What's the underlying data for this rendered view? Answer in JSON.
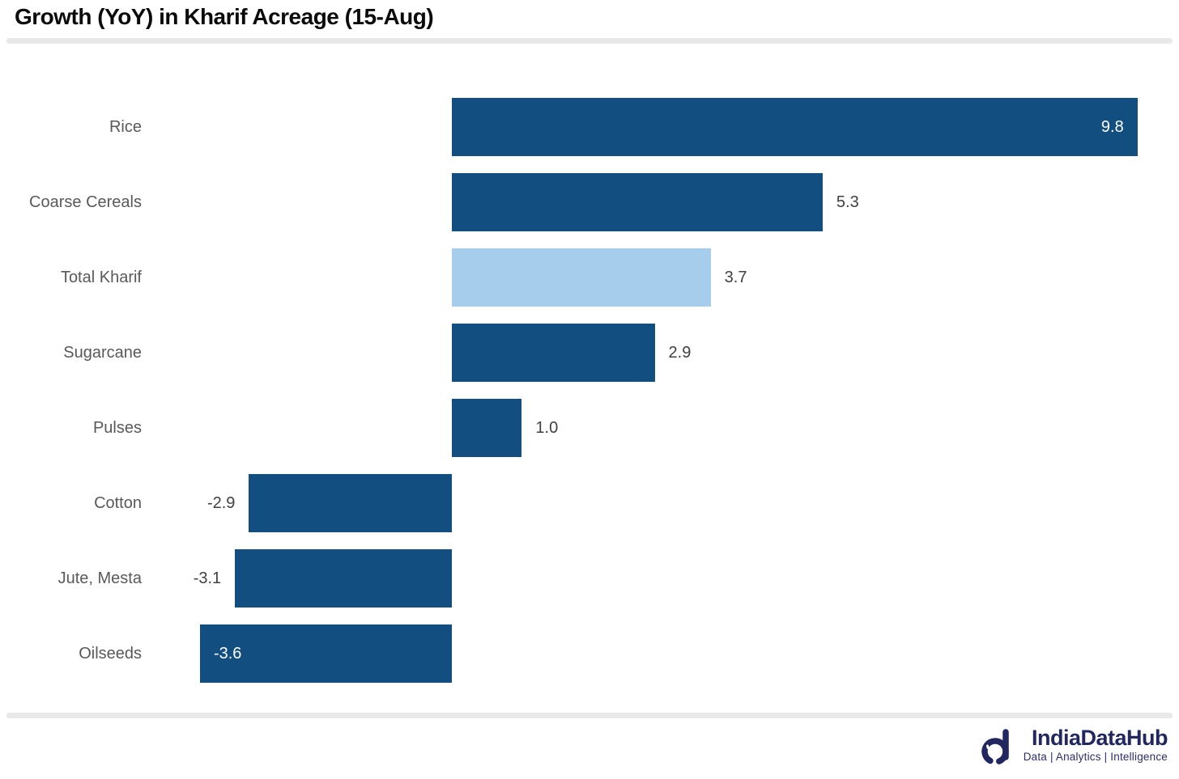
{
  "page": {
    "title": "Growth (YoY) in Kharif Acreage (15-Aug)"
  },
  "chart_data": {
    "type": "bar",
    "orientation": "horizontal",
    "title": "Growth (YoY) in Kharif Acreage (15-Aug)",
    "categories": [
      "Rice",
      "Coarse Cereals",
      "Total Kharif",
      "Sugarcane",
      "Pulses",
      "Cotton",
      "Jute, Mesta",
      "Oilseeds"
    ],
    "values": [
      9.8,
      5.3,
      3.7,
      2.9,
      1.0,
      -2.9,
      -3.1,
      -3.6
    ],
    "value_labels": [
      "9.8",
      "5.3",
      "3.7",
      "2.9",
      "1.0",
      "-2.9",
      "-3.1",
      "-3.6"
    ],
    "xlabel": "",
    "ylabel": "",
    "xlim": [
      -4.5,
      10.4
    ],
    "grid": false,
    "axis_visible": false,
    "legend": false,
    "highlight_category": "Total Kharif",
    "colors": {
      "bar_default": "#124F80",
      "bar_highlight": "#A6CEEC",
      "value_label_outside": "#404040",
      "value_label_inside": "#FFFFFF",
      "category_label": "#595959"
    }
  },
  "footer": {
    "brand": "IndiaDataHub",
    "tagline": "Data | Analytics | Intelligence"
  }
}
